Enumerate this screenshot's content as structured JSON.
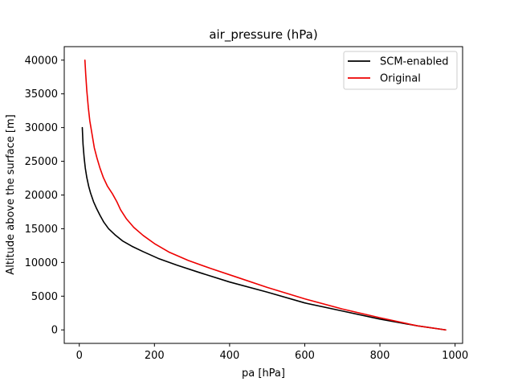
{
  "chart_data": {
    "type": "line",
    "title": "air_pressure (hPa)",
    "xlabel": "pa [hPa]",
    "ylabel": "Altitude above the surface [m]",
    "xlim": [
      -40,
      1020
    ],
    "ylim": [
      -2000,
      42000
    ],
    "xticks": [
      0,
      200,
      400,
      600,
      800,
      1000
    ],
    "xtick_labels": [
      "0",
      "200",
      "400",
      "600",
      "800",
      "1000"
    ],
    "yticks": [
      0,
      5000,
      10000,
      15000,
      20000,
      25000,
      30000,
      35000,
      40000
    ],
    "ytick_labels": [
      "0",
      "5000",
      "10000",
      "15000",
      "20000",
      "25000",
      "30000",
      "35000",
      "40000"
    ],
    "grid": false,
    "legend_position": "upper right",
    "series": [
      {
        "name": "SCM-enabled",
        "color": "#000000",
        "x": [
          8,
          10,
          13,
          16,
          20,
          25,
          30,
          38,
          46,
          55,
          65,
          78,
          95,
          115,
          140,
          170,
          210,
          260,
          320,
          400,
          500,
          600,
          700,
          800,
          900,
          975
        ],
        "y": [
          30000,
          27500,
          25500,
          24000,
          22600,
          21300,
          20300,
          19000,
          18000,
          17000,
          16000,
          15000,
          14100,
          13200,
          12400,
          11600,
          10600,
          9600,
          8500,
          7100,
          5600,
          4000,
          2800,
          1600,
          600,
          0
        ]
      },
      {
        "name": "Original",
        "color": "#ee0000",
        "x": [
          15,
          17,
          20,
          24,
          28,
          34,
          40,
          47,
          55,
          64,
          75,
          88,
          100,
          110,
          125,
          145,
          170,
          200,
          240,
          290,
          350,
          420,
          500,
          600,
          700,
          800,
          900,
          975
        ],
        "y": [
          40000,
          38000,
          35500,
          33000,
          31000,
          29000,
          27000,
          25500,
          24000,
          22600,
          21300,
          20200,
          19000,
          17800,
          16500,
          15200,
          14000,
          12800,
          11500,
          10300,
          9100,
          7800,
          6300,
          4600,
          3100,
          1800,
          600,
          0
        ]
      }
    ]
  }
}
